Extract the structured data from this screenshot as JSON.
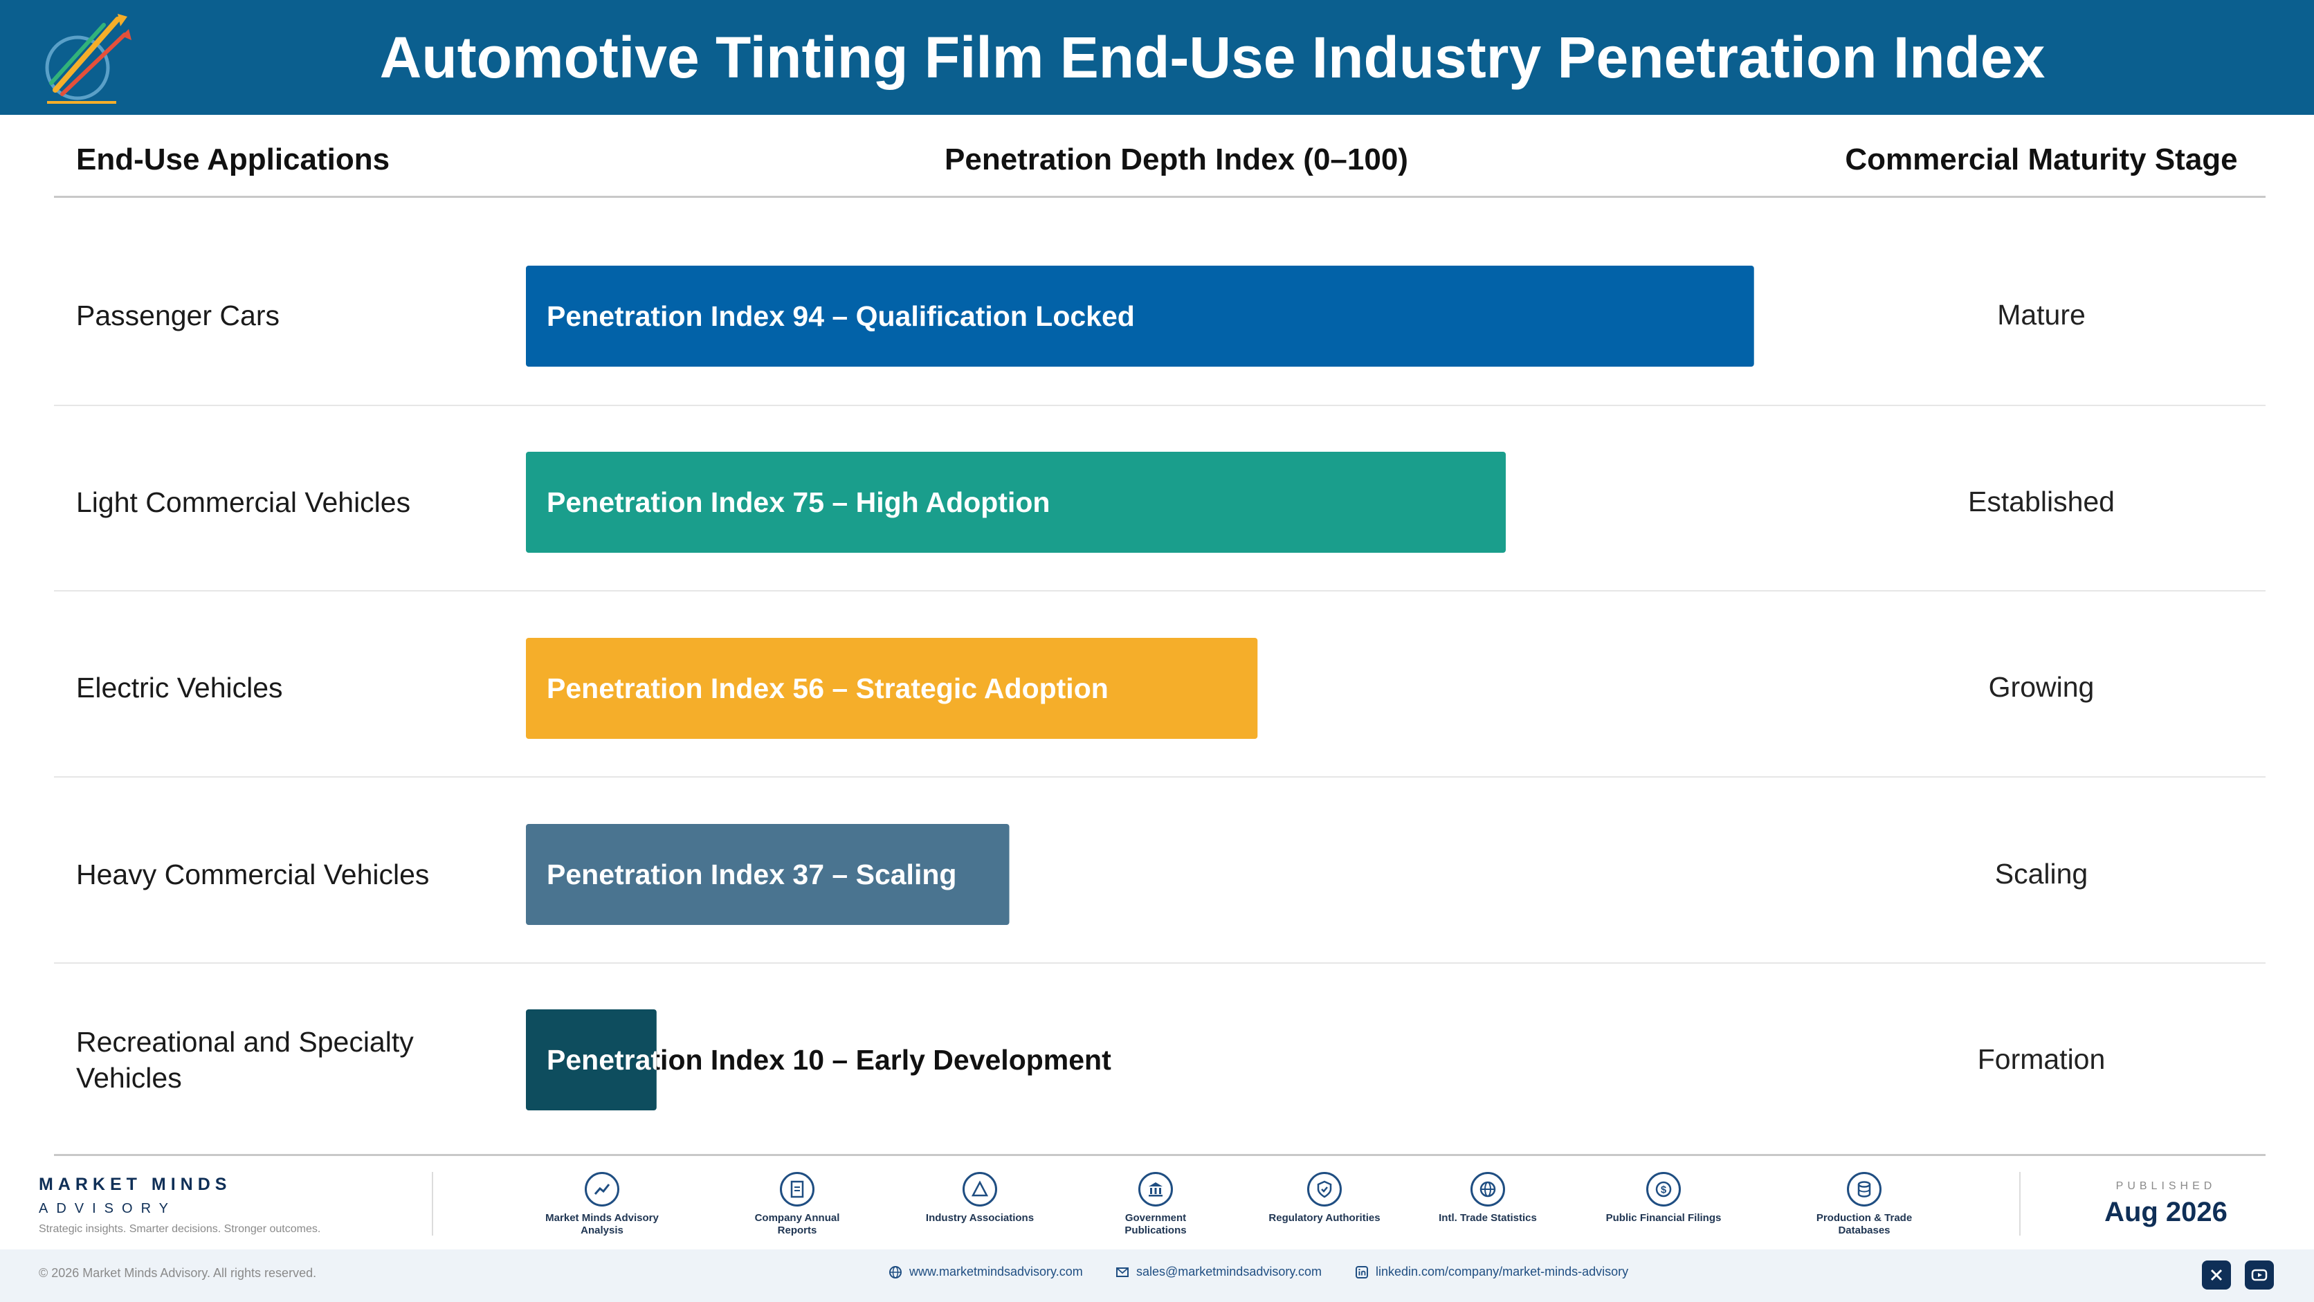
{
  "header": {
    "title": "Automotive Tinting Film End-Use Industry Penetration Index",
    "logo_icon": "rising-arrows-logo-icon"
  },
  "columns": {
    "applications": "End-Use Applications",
    "depth": "Penetration Depth Index (0–100)",
    "stage": "Commercial Maturity Stage"
  },
  "chart_data": {
    "type": "bar",
    "orientation": "horizontal",
    "xlim": [
      0,
      100
    ],
    "categories": [
      "Passenger Cars",
      "Light Commercial Vehicles",
      "Electric Vehicles",
      "Heavy Commercial Vehicles",
      "Recreational and Specialty Vehicles"
    ],
    "values": [
      94,
      75,
      56,
      37,
      10
    ],
    "bar_labels": [
      "Penetration Index 94 – Qualification Locked",
      "Penetration Index 75 – High Adoption",
      "Penetration Index 56 – Strategic Adoption",
      "Penetration Index 37 – Scaling",
      "Penetration Index 10 – Early Development"
    ],
    "colors": [
      "#0262a8",
      "#1a9e8c",
      "#f5ae2a",
      "#4a7490",
      "#0e4d5e"
    ],
    "stages": [
      "Mature",
      "Established",
      "Growing",
      "Scaling",
      "Formation"
    ]
  },
  "footer": {
    "brand_line1": "MARKET MINDS",
    "brand_line2": "ADVISORY",
    "tagline": "Strategic insights. Smarter decisions. Stronger outcomes.",
    "sources": [
      {
        "label": "Market Minds Advisory Analysis",
        "icon": "trend-line-icon"
      },
      {
        "label": "Company Annual Reports",
        "icon": "document-icon"
      },
      {
        "label": "Industry Associations",
        "icon": "network-triangle-icon"
      },
      {
        "label": "Government Publications",
        "icon": "government-building-icon"
      },
      {
        "label": "Regulatory Authorities",
        "icon": "shield-check-icon"
      },
      {
        "label": "Intl. Trade Statistics",
        "icon": "globe-icon"
      },
      {
        "label": "Public Financial Filings",
        "icon": "dollar-coin-icon"
      },
      {
        "label": "Production & Trade Databases",
        "icon": "database-icon"
      }
    ],
    "published_label": "PUBLISHED",
    "published_date": "Aug 2026",
    "copyright": "© 2026 Market Minds Advisory. All rights reserved.",
    "website": "www.marketmindsadvisory.com",
    "email": "sales@marketmindsadvisory.com",
    "linkedin": "linkedin.com/company/market-minds-advisory",
    "social": [
      "x-icon",
      "youtube-icon"
    ]
  }
}
